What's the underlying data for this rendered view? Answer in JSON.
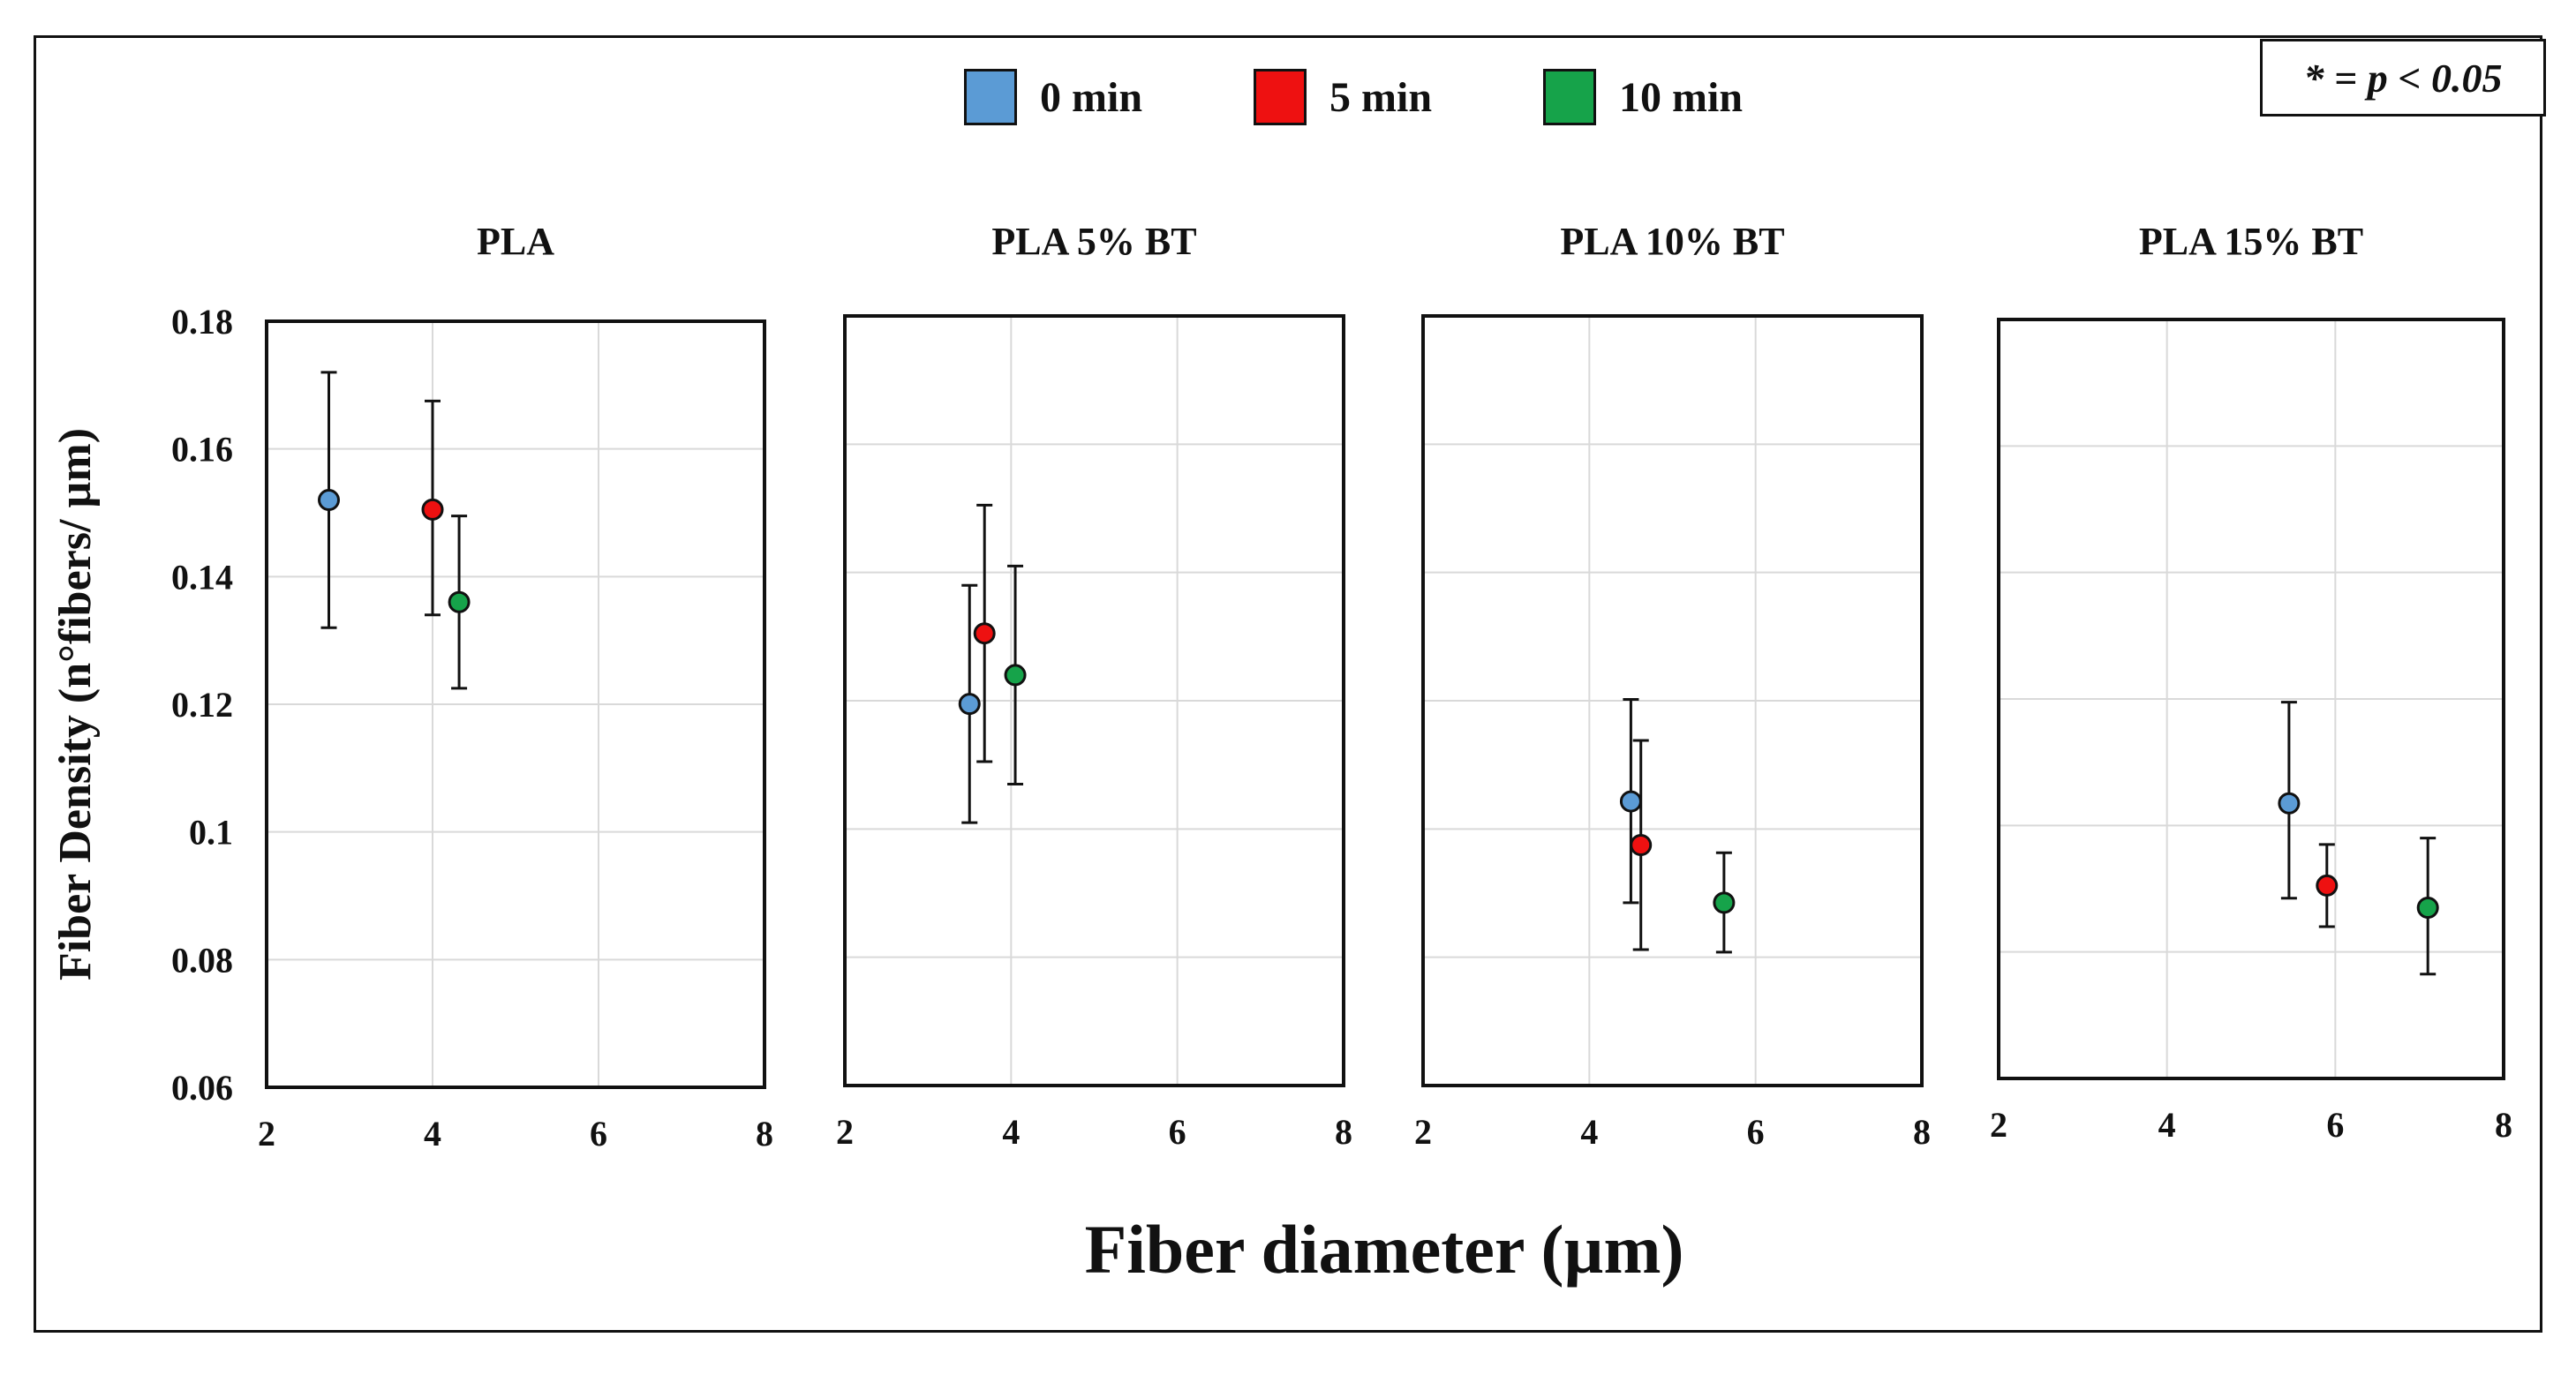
{
  "significance_note": "* = p < 0.05",
  "legend": [
    {
      "label": "0 min",
      "color": "#5b9bd5"
    },
    {
      "label": "5 min",
      "color": "#ee1111"
    },
    {
      "label": "10 min",
      "color": "#16a34a"
    }
  ],
  "chart_data": {
    "type": "scatter",
    "xlabel": "Fiber diameter (µm)",
    "ylabel": "Fiber Density (n°fibers/ µm)",
    "xlim": [
      2,
      8
    ],
    "ylim": [
      0.06,
      0.18
    ],
    "x_ticks": [
      "2",
      "4",
      "6",
      "8"
    ],
    "y_ticks": [
      "0.18",
      "0.16",
      "0.14",
      "0.12",
      "0.1",
      "0.08",
      "0.06"
    ],
    "error_bars": true,
    "grid": true,
    "panels": [
      {
        "title": "PLA",
        "series": [
          {
            "name": "0 min",
            "x": 2.75,
            "y": 0.152,
            "yerr_low": 0.132,
            "yerr_high": 0.172
          },
          {
            "name": "5 min",
            "x": 4.0,
            "y": 0.1505,
            "yerr_low": 0.134,
            "yerr_high": 0.1675
          },
          {
            "name": "10 min",
            "x": 4.32,
            "y": 0.136,
            "yerr_low": 0.1225,
            "yerr_high": 0.1495
          }
        ]
      },
      {
        "title": "PLA 5% BT",
        "series": [
          {
            "name": "0 min",
            "x": 3.5,
            "y": 0.1195,
            "yerr_low": 0.101,
            "yerr_high": 0.138
          },
          {
            "name": "5 min",
            "x": 3.68,
            "y": 0.1305,
            "yerr_low": 0.1105,
            "yerr_high": 0.1505
          },
          {
            "name": "10 min",
            "x": 4.05,
            "y": 0.124,
            "yerr_low": 0.107,
            "yerr_high": 0.141
          }
        ]
      },
      {
        "title": "PLA 10% BT",
        "series": [
          {
            "name": "0 min",
            "x": 4.5,
            "y": 0.1043,
            "yerr_low": 0.0885,
            "yerr_high": 0.1202
          },
          {
            "name": "5 min",
            "x": 4.62,
            "y": 0.0975,
            "yerr_low": 0.0812,
            "yerr_high": 0.1138
          },
          {
            "name": "10 min",
            "x": 5.62,
            "y": 0.0885,
            "yerr_low": 0.0808,
            "yerr_high": 0.0963
          }
        ]
      },
      {
        "title": "PLA 15% BT",
        "series": [
          {
            "name": "0 min",
            "x": 5.45,
            "y": 0.1035,
            "yerr_low": 0.0885,
            "yerr_high": 0.1195
          },
          {
            "name": "5 min",
            "x": 5.9,
            "y": 0.0905,
            "yerr_low": 0.084,
            "yerr_high": 0.097
          },
          {
            "name": "10 min",
            "x": 7.1,
            "y": 0.087,
            "yerr_low": 0.0765,
            "yerr_high": 0.098
          }
        ]
      }
    ]
  }
}
